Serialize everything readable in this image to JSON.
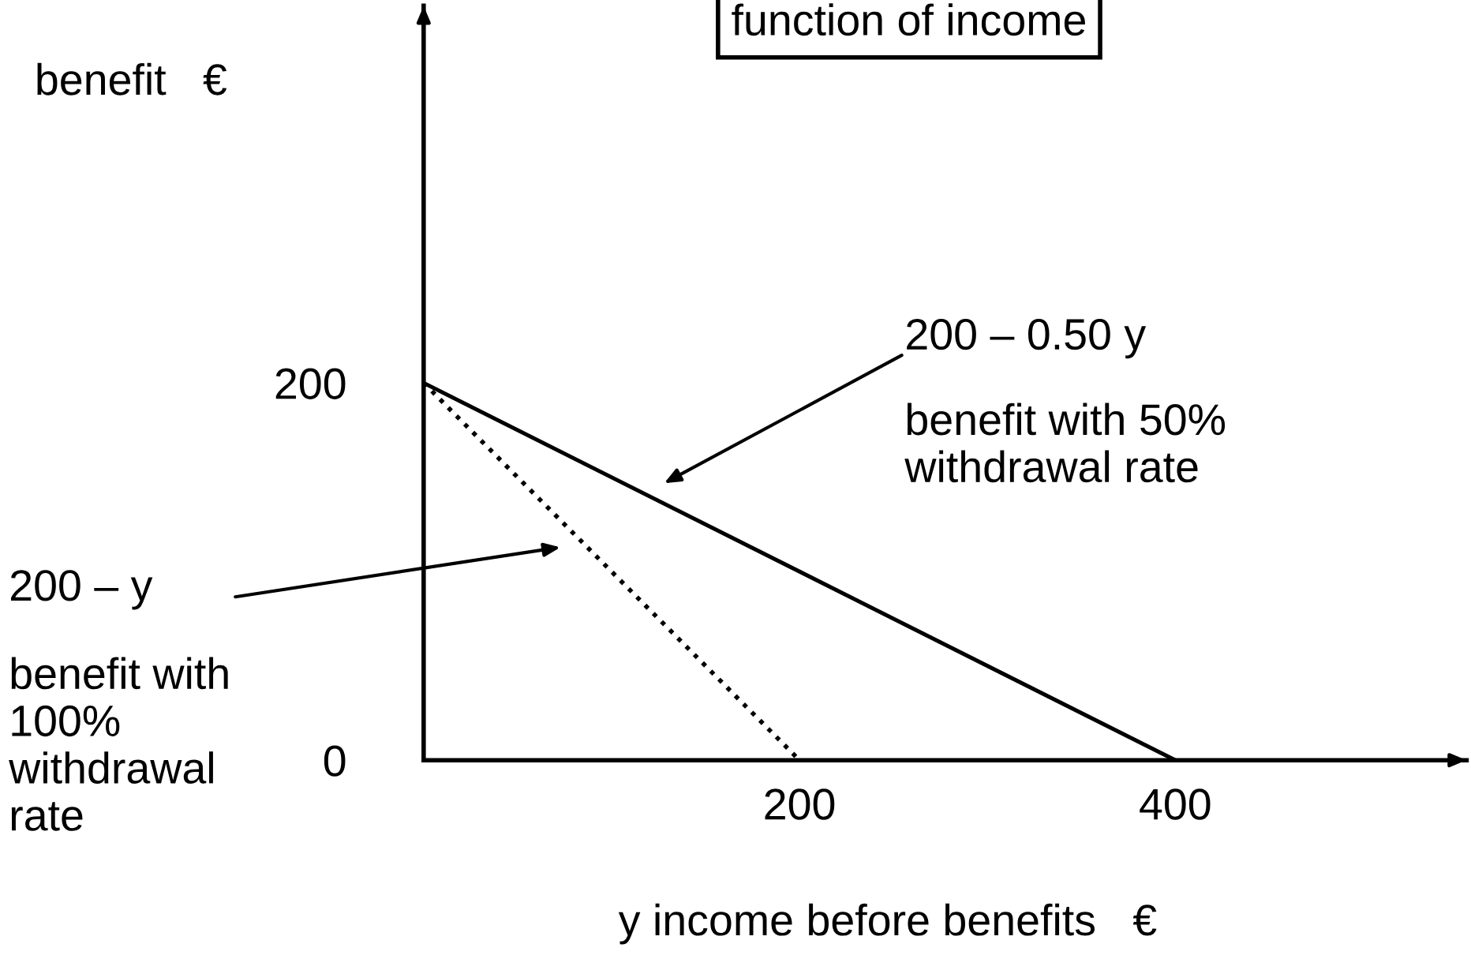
{
  "chart_data": {
    "type": "line",
    "title": "function of income",
    "xlabel": "y income before benefits   €",
    "ylabel": "benefit   €",
    "series": [
      {
        "x": [
          0,
          200
        ],
        "values": [
          200,
          0
        ],
        "color": "#000000",
        "line_style": "dotted"
      },
      {
        "x": [
          0,
          400
        ],
        "values": [
          200,
          0
        ],
        "color": "#000000",
        "line_style": "solid"
      }
    ],
    "xlim": [
      0,
      555
    ],
    "ylim": [
      0,
      400
    ],
    "xticks": [
      200,
      400
    ],
    "yticks": [
      {
        "value": 0,
        "label": "0"
      },
      200
    ],
    "annotations": [
      "200 – 0.50 y",
      "benefit with 50%\nwithdrawal rate",
      "200 – y",
      "benefit with\n100%\nwithdrawal\nrate"
    ],
    "grid": false,
    "legend": false,
    "marker": "none"
  }
}
